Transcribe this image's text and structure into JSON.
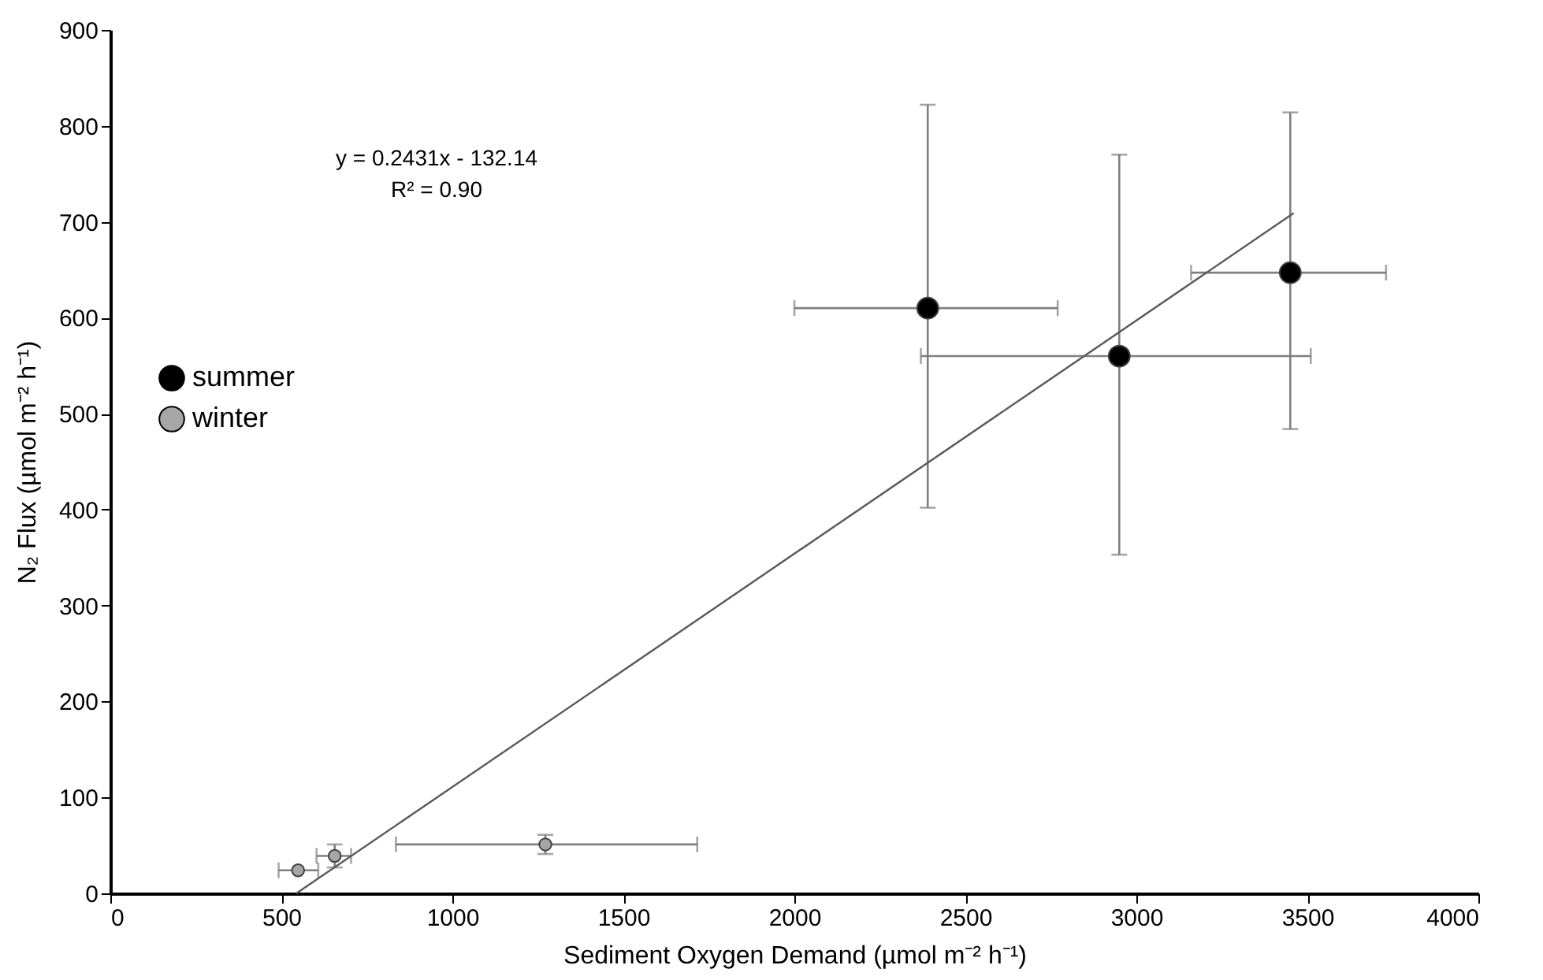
{
  "chart_data": {
    "type": "scatter",
    "xlabel": "Sediment Oxygen Demand (µmol m⁻² h⁻¹)",
    "ylabel": "N₂ Flux (µmol m⁻² h⁻¹)",
    "xlim": [
      0,
      4000
    ],
    "xticks": [
      0,
      500,
      1000,
      1500,
      2000,
      2500,
      3000,
      3500,
      4000
    ],
    "ylim": [
      0,
      900
    ],
    "yticks": [
      0,
      100,
      200,
      300,
      400,
      500,
      600,
      700,
      800,
      900
    ],
    "grid": false,
    "legend": "left",
    "annotations": [
      "y = 0.2431x - 132.14",
      "R² = 0.90"
    ],
    "series": [
      {
        "name": "summer",
        "marker": "circle",
        "color": "#000000",
        "x": [
          2390,
          2950,
          3450
        ],
        "values": [
          610,
          560,
          647
        ],
        "errors": [
          [
            402,
            822
          ],
          [
            353,
            770
          ],
          [
            484,
            814
          ]
        ],
        "xerrors": [
          [
            2000,
            2770
          ],
          [
            2370,
            3510
          ],
          [
            3160,
            3730
          ]
        ]
      },
      {
        "name": "winter",
        "marker": "circle",
        "color": "#a6a6a6",
        "x": [
          549,
          656,
          1272
        ],
        "values": [
          24,
          39,
          51
        ],
        "errors": [
          null,
          [
            27,
            51
          ],
          [
            41,
            61
          ]
        ],
        "xerrors": [
          [
            492,
            608
          ],
          [
            603,
            704
          ],
          [
            835,
            1716
          ]
        ]
      },
      {
        "type": "line",
        "marker": "none",
        "color": "#595959",
        "x": [
          544,
          3460
        ],
        "values": [
          0,
          709
        ],
        "line_style": "solid"
      }
    ]
  }
}
